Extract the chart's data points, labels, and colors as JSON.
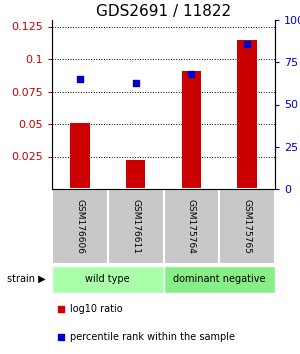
{
  "title": "GDS2691 / 11822",
  "samples": [
    "GSM176606",
    "GSM176611",
    "GSM175764",
    "GSM175765"
  ],
  "red_bar_values": [
    0.051,
    0.022,
    0.091,
    0.115
  ],
  "blue_percentile": [
    65,
    63,
    68,
    86
  ],
  "ylim_left": [
    0.0,
    0.13
  ],
  "ylim_right": [
    0.0,
    100.0
  ],
  "yticks_left": [
    0.025,
    0.05,
    0.075,
    0.1,
    0.125
  ],
  "yticks_right": [
    0,
    25,
    50,
    75,
    100
  ],
  "ytick_labels_left": [
    "0.025",
    "0.05",
    "0.075",
    "0.1",
    "0.125"
  ],
  "ytick_labels_right": [
    "0",
    "25",
    "50",
    "75",
    "100%"
  ],
  "group1_samples": [
    0,
    1
  ],
  "group2_samples": [
    2,
    3
  ],
  "group1_label": "wild type",
  "group2_label": "dominant negative",
  "group1_color": "#aaffaa",
  "group2_color": "#88ee88",
  "strain_label": "strain",
  "legend1_label": "log10 ratio",
  "legend2_label": "percentile rank within the sample",
  "red_color": "#cc0000",
  "blue_color": "#0000cc",
  "title_fontsize": 11,
  "tick_fontsize": 8,
  "sample_fontsize": 6.5,
  "group_fontsize": 7,
  "legend_fontsize": 7
}
